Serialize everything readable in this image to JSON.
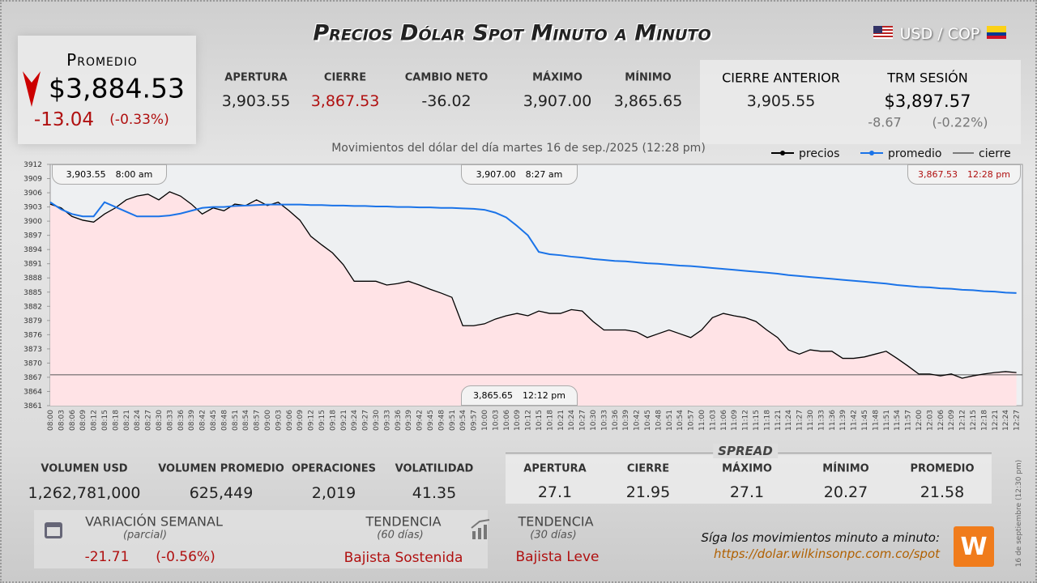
{
  "header": {
    "title": "Precios Dólar Spot Minuto a Minuto",
    "pair": "USD / COP"
  },
  "average_box": {
    "label": "Promedio",
    "value": "$3,884.53",
    "change": "-13.04",
    "change_pct": "(-0.33%)"
  },
  "stats": [
    {
      "label": "APERTURA",
      "value": "3,903.55"
    },
    {
      "label": "CIERRE",
      "value": "3,867.53"
    },
    {
      "label": "CAMBIO NETO",
      "value": "-36.02"
    },
    {
      "label": "MÁXIMO",
      "value": "3,907.00"
    },
    {
      "label": "MÍNIMO",
      "value": "3,865.65"
    }
  ],
  "previous": {
    "label": "CIERRE ANTERIOR",
    "value": "3,905.55"
  },
  "trm": {
    "label": "TRM SESIÓN",
    "value": "$3,897.57",
    "change": "-8.67",
    "change_pct": "(-0.22%)"
  },
  "chart_data": {
    "type": "line",
    "subtitle": "Movimientos del dólar del día martes 16 de sep./2025 (12:28 pm)",
    "categories": [
      "08:00",
      "08:03",
      "08:06",
      "08:09",
      "08:12",
      "08:15",
      "08:18",
      "08:21",
      "08:24",
      "08:27",
      "08:30",
      "08:33",
      "08:36",
      "08:39",
      "08:42",
      "08:45",
      "08:48",
      "08:51",
      "08:54",
      "08:57",
      "09:00",
      "09:03",
      "09:06",
      "09:09",
      "09:12",
      "09:15",
      "09:18",
      "09:21",
      "09:24",
      "09:27",
      "09:30",
      "09:33",
      "09:36",
      "09:39",
      "09:42",
      "09:45",
      "09:48",
      "09:51",
      "09:54",
      "09:57",
      "10:00",
      "10:03",
      "10:06",
      "10:09",
      "10:12",
      "10:15",
      "10:18",
      "10:21",
      "10:24",
      "10:27",
      "10:30",
      "10:33",
      "10:36",
      "10:39",
      "10:42",
      "10:45",
      "10:48",
      "10:51",
      "10:54",
      "10:57",
      "11:00",
      "11:03",
      "11:06",
      "11:09",
      "11:12",
      "11:15",
      "11:18",
      "11:21",
      "11:24",
      "11:27",
      "11:30",
      "11:33",
      "11:36",
      "11:39",
      "11:42",
      "11:45",
      "11:48",
      "11:51",
      "11:54",
      "11:57",
      "12:00",
      "12:03",
      "12:06",
      "12:09",
      "12:12",
      "12:15",
      "12:18",
      "12:21",
      "12:24",
      "12:27"
    ],
    "series": [
      {
        "name": "precios",
        "color": "#000000",
        "values": [
          3903.6,
          3902.8,
          3901.0,
          3900.2,
          3899.8,
          3901.5,
          3902.8,
          3904.5,
          3905.3,
          3905.7,
          3904.5,
          3906.2,
          3905.3,
          3903.6,
          3901.5,
          3902.8,
          3902.2,
          3903.6,
          3903.3,
          3904.5,
          3903.3,
          3904.0,
          3902.2,
          3900.2,
          3896.8,
          3895.0,
          3893.3,
          3890.8,
          3887.3,
          3887.3,
          3887.3,
          3886.5,
          3886.8,
          3887.3,
          3886.5,
          3885.6,
          3884.8,
          3883.9,
          3877.9,
          3877.9,
          3878.3,
          3879.3,
          3880.0,
          3880.5,
          3880.0,
          3881.0,
          3880.5,
          3880.5,
          3881.3,
          3881.0,
          3878.8,
          3877.0,
          3877.0,
          3877.0,
          3876.6,
          3875.4,
          3876.2,
          3877.0,
          3876.2,
          3875.4,
          3877.0,
          3879.6,
          3880.5,
          3880.0,
          3879.6,
          3878.8,
          3877.0,
          3875.4,
          3872.8,
          3871.9,
          3872.8,
          3872.5,
          3872.5,
          3871.0,
          3871.0,
          3871.3,
          3871.9,
          3872.5,
          3871.0,
          3869.4,
          3867.7,
          3867.7,
          3867.3,
          3867.7,
          3866.8,
          3867.3,
          3867.7,
          3868.0,
          3868.2,
          3868.0
        ]
      },
      {
        "name": "promedio",
        "color": "#1a73e8",
        "values": [
          3904.0,
          3902.5,
          3901.5,
          3901.0,
          3901.0,
          3904.0,
          3903.0,
          3902.0,
          3901.0,
          3901.0,
          3901.0,
          3901.2,
          3901.6,
          3902.2,
          3902.8,
          3903.0,
          3903.0,
          3903.2,
          3903.3,
          3903.4,
          3903.5,
          3903.5,
          3903.5,
          3903.5,
          3903.4,
          3903.4,
          3903.3,
          3903.3,
          3903.2,
          3903.2,
          3903.1,
          3903.1,
          3903.0,
          3903.0,
          3902.9,
          3902.9,
          3902.8,
          3902.8,
          3902.7,
          3902.6,
          3902.4,
          3901.8,
          3900.8,
          3899.0,
          3897.0,
          3893.5,
          3893.0,
          3892.8,
          3892.5,
          3892.3,
          3892.0,
          3891.8,
          3891.6,
          3891.5,
          3891.3,
          3891.1,
          3891.0,
          3890.8,
          3890.6,
          3890.5,
          3890.3,
          3890.1,
          3889.9,
          3889.7,
          3889.5,
          3889.3,
          3889.1,
          3888.9,
          3888.6,
          3888.4,
          3888.2,
          3888.0,
          3887.8,
          3887.6,
          3887.4,
          3887.2,
          3887.0,
          3886.8,
          3886.5,
          3886.3,
          3886.1,
          3886.0,
          3885.8,
          3885.7,
          3885.5,
          3885.4,
          3885.2,
          3885.1,
          3884.9,
          3884.8
        ]
      }
    ],
    "reference_lines": [
      {
        "name": "cierre",
        "value": 3867.53,
        "color": "#555555"
      }
    ],
    "ylim": [
      3861,
      3912
    ],
    "yticks": [
      3861,
      3864,
      3867,
      3870,
      3873,
      3876,
      3879,
      3882,
      3885,
      3888,
      3891,
      3894,
      3897,
      3900,
      3903,
      3906,
      3909,
      3912
    ],
    "annotations": [
      {
        "value": "3,903.55",
        "time": "8:00 am"
      },
      {
        "value": "3,907.00",
        "time": "8:27 am"
      },
      {
        "value": "3,867.53",
        "time": "12:28 pm"
      },
      {
        "value": "3,865.65",
        "time": "12:12 pm"
      }
    ]
  },
  "volume": [
    {
      "label": "VOLUMEN USD",
      "value": "1,262,781,000"
    },
    {
      "label": "VOLUMEN PROMEDIO",
      "value": "625,449"
    },
    {
      "label": "OPERACIONES",
      "value": "2,019"
    },
    {
      "label": "VOLATILIDAD",
      "value": "41.35"
    }
  ],
  "spread": {
    "title": "SPREAD",
    "items": [
      {
        "label": "APERTURA",
        "value": "27.1"
      },
      {
        "label": "CIERRE",
        "value": "21.95"
      },
      {
        "label": "MÁXIMO",
        "value": "27.1"
      },
      {
        "label": "MÍNIMO",
        "value": "20.27"
      },
      {
        "label": "PROMEDIO",
        "value": "21.58"
      }
    ]
  },
  "weekly": {
    "label": "VARIACIÓN SEMANAL",
    "note": "(parcial)",
    "change": "-21.71",
    "change_pct": "(-0.56%)"
  },
  "trend60": {
    "label": "TENDENCIA",
    "note": "(60 días)",
    "value": "Bajista Sostenida"
  },
  "trend30": {
    "label": "TENDENCIA",
    "note": "(30 días)",
    "value": "Bajista Leve"
  },
  "footer": {
    "text": "Síga los movimientos minuto a minuto:",
    "url": "https://dolar.wilkinsonpc.com.co/spot",
    "side": "16 de septiembre (12:30 pm)"
  }
}
